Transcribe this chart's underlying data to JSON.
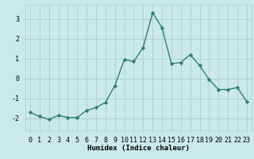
{
  "x": [
    0,
    1,
    2,
    3,
    4,
    5,
    6,
    7,
    8,
    9,
    10,
    11,
    12,
    13,
    14,
    15,
    16,
    17,
    18,
    19,
    20,
    21,
    22,
    23
  ],
  "y": [
    -1.7,
    -1.9,
    -2.05,
    -1.85,
    -1.95,
    -1.95,
    -1.6,
    -1.45,
    -1.2,
    -0.35,
    0.95,
    0.85,
    1.55,
    3.3,
    2.55,
    0.75,
    0.8,
    1.2,
    0.65,
    -0.05,
    -0.55,
    -0.55,
    -0.45,
    -1.15
  ],
  "line_color": "#2e7d6e",
  "marker": "D",
  "marker_size": 2.2,
  "line_width": 1.0,
  "bg_color": "#cce9e9",
  "grid_color": "#aacece",
  "xlabel": "Humidex (Indice chaleur)",
  "xlim": [
    -0.5,
    23.5
  ],
  "ylim": [
    -2.6,
    3.7
  ],
  "yticks": [
    -2,
    -1,
    0,
    1,
    2,
    3
  ],
  "xticks": [
    0,
    1,
    2,
    3,
    4,
    5,
    6,
    7,
    8,
    9,
    10,
    11,
    12,
    13,
    14,
    15,
    16,
    17,
    18,
    19,
    20,
    21,
    22,
    23
  ],
  "xlabel_fontsize": 6.5,
  "tick_fontsize": 6.0
}
